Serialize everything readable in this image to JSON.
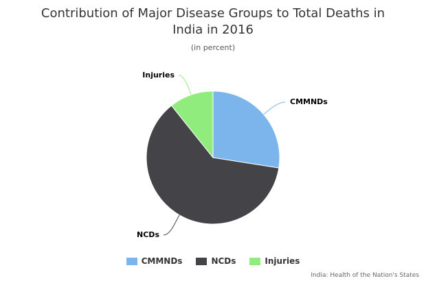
{
  "chart_data": {
    "type": "pie",
    "title": "Contribution of Major Disease Groups to Total Deaths in India in 2016",
    "subtitle": "(in percent)",
    "slices": [
      {
        "label": "CMMNDs",
        "value": 27.5,
        "color": "#7cb5ec"
      },
      {
        "label": "NCDs",
        "value": 61.8,
        "color": "#434348"
      },
      {
        "label": "Injuries",
        "value": 10.7,
        "color": "#90ed7d"
      }
    ],
    "legend": [
      "CMMNDs",
      "NCDs",
      "Injuries"
    ],
    "legend_position": "bottom",
    "credit": "India: Health of the Nation's States"
  }
}
